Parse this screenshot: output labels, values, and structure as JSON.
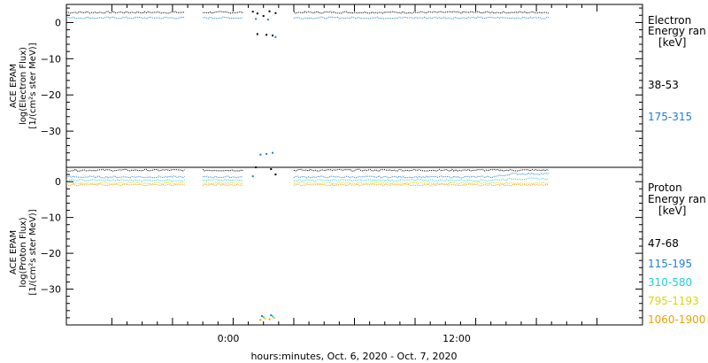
{
  "xaxis_label": "hours:minutes, Oct.  6, 2020 - Oct.  7, 2020",
  "x_tick_labels": [
    "0:00",
    "12:00"
  ],
  "chart_data": [
    {
      "type": "line",
      "panel": "electron",
      "ylabel_lines": [
        "ACE EPAM",
        "log(Electron Flux)",
        "[1/(cm²s ster MeV)]"
      ],
      "ylim": [
        -40,
        5
      ],
      "y_ticks": [
        0,
        -10,
        -20,
        -30
      ],
      "y_tick_labels": [
        "0",
        "−10",
        "−20",
        "−30"
      ],
      "x_unit": "hours relative to Oct. 7 0:00",
      "xlim": [
        -11,
        27
      ],
      "legend": {
        "title_lines": [
          "Electron",
          "Energy ran",
          "[keV]"
        ],
        "entries": [
          {
            "label": "38-53",
            "color": "#000000"
          },
          {
            "label": "175-315",
            "color": "#1f7fd6"
          }
        ]
      },
      "series": [
        {
          "name": "38-53",
          "color": "#000000",
          "level": 2.8,
          "segments": [
            [
              -11,
              -3.1
            ],
            [
              -2,
              0.7
            ],
            [
              4,
              20.9
            ]
          ],
          "gap_points": [
            [
              1.3,
              3.0
            ],
            [
              1.6,
              2.5
            ],
            [
              2.0,
              1.8
            ],
            [
              2.4,
              3.1
            ],
            [
              2.8,
              2.6
            ],
            [
              1.6,
              -3.2
            ],
            [
              2.2,
              -3.4
            ],
            [
              2.6,
              -3.6
            ]
          ]
        },
        {
          "name": "175-315",
          "color": "#1f7fd6",
          "level": 1.3,
          "segments": [
            [
              -11,
              -3.1
            ],
            [
              -2,
              0.7
            ],
            [
              4,
              20.9
            ]
          ],
          "gap_points": [
            [
              1.5,
              1.0
            ],
            [
              2.3,
              0.8
            ],
            [
              2.8,
              -4.0
            ],
            [
              1.8,
              -36.5
            ],
            [
              2.2,
              -36.3
            ],
            [
              2.6,
              -36.0
            ]
          ]
        }
      ]
    },
    {
      "type": "line",
      "panel": "proton",
      "ylabel_lines": [
        "ACE EPAM",
        "log(Proton Flux)",
        "[1/(cm²s ster MeV)]"
      ],
      "ylim": [
        -40,
        4
      ],
      "y_ticks": [
        0,
        -10,
        -20,
        -30
      ],
      "y_tick_labels": [
        "0",
        "−10",
        "−20",
        "−30"
      ],
      "x_unit": "hours relative to Oct. 7 0:00",
      "xlim": [
        -11,
        27
      ],
      "legend": {
        "title_lines": [
          "Proton",
          "Energy ran",
          "[keV]"
        ],
        "entries": [
          {
            "label": "47-68",
            "color": "#000000"
          },
          {
            "label": "115-195",
            "color": "#1f7fd6"
          },
          {
            "label": "310-580",
            "color": "#22d0d8"
          },
          {
            "label": "795-1193",
            "color": "#d8d800"
          },
          {
            "label": "1060-1900",
            "color": "#f0a000"
          }
        ]
      },
      "series": [
        {
          "name": "47-68",
          "color": "#000000",
          "level": 3.2,
          "segments": [
            [
              -11,
              -3.1
            ],
            [
              -2,
              0.7
            ],
            [
              4,
              20.9
            ]
          ],
          "late_rise": 0.0,
          "gap_points": [
            [
              1.5,
              4.0
            ],
            [
              2.5,
              3.5
            ],
            [
              2.8,
              2.0
            ]
          ]
        },
        {
          "name": "115-195",
          "color": "#1f7fd6",
          "level": 1.3,
          "segments": [
            [
              -11,
              -3.1
            ],
            [
              -2,
              0.7
            ],
            [
              4,
              20.9
            ]
          ],
          "late_rise": 0.9,
          "gap_points": [
            [
              1.3,
              1.5
            ],
            [
              1.9,
              -37.5
            ],
            [
              2.5,
              -37.3
            ]
          ]
        },
        {
          "name": "310-580",
          "color": "#22d0d8",
          "level": 0.4,
          "segments": [
            [
              -11,
              -3.1
            ],
            [
              -2,
              0.7
            ],
            [
              4,
              20.9
            ]
          ],
          "late_rise": 0.4,
          "gap_points": [
            [
              2.0,
              -37.8
            ],
            [
              2.6,
              -37.6
            ]
          ]
        },
        {
          "name": "795-1193",
          "color": "#d8d800",
          "level": -0.4,
          "segments": [
            [
              -11,
              -3.1
            ],
            [
              -2,
              0.7
            ],
            [
              4,
              20.9
            ]
          ],
          "late_rise": 0.0,
          "gap_points": [
            [
              2.1,
              -38.2
            ],
            [
              2.7,
              -38.0
            ]
          ]
        },
        {
          "name": "1060-1900",
          "color": "#f0a000",
          "level": -0.9,
          "segments": [
            [
              -11,
              -3.1
            ],
            [
              -2,
              0.7
            ],
            [
              4,
              20.9
            ]
          ],
          "late_rise": 0.0,
          "gap_points": [
            [
              1.8,
              -38.6
            ],
            [
              2.4,
              -38.4
            ]
          ]
        }
      ]
    }
  ]
}
